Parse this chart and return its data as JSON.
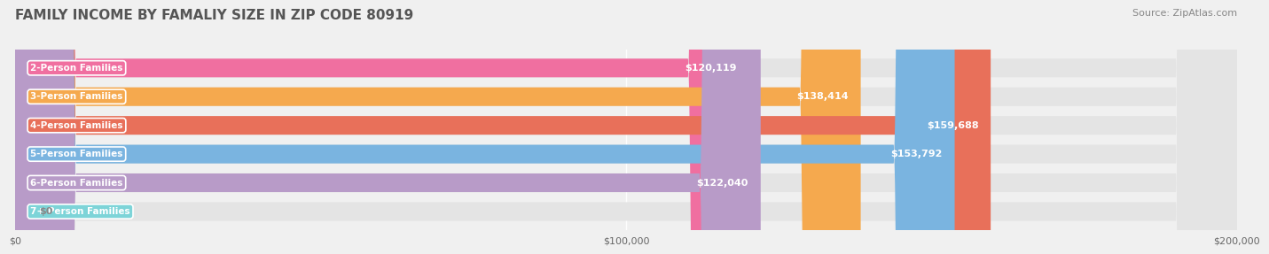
{
  "title": "FAMILY INCOME BY FAMALIY SIZE IN ZIP CODE 80919",
  "source": "Source: ZipAtlas.com",
  "categories": [
    "2-Person Families",
    "3-Person Families",
    "4-Person Families",
    "5-Person Families",
    "6-Person Families",
    "7+ Person Families"
  ],
  "values": [
    120119,
    138414,
    159688,
    153792,
    122040,
    0
  ],
  "bar_colors": [
    "#f06fa0",
    "#f5a94e",
    "#e8705a",
    "#7ab4e0",
    "#b89bc8",
    "#7dd4d8"
  ],
  "label_values": [
    "$120,119",
    "$138,414",
    "$159,688",
    "$153,792",
    "$122,040",
    "$0"
  ],
  "xlim": [
    0,
    200000
  ],
  "xticks": [
    0,
    100000,
    200000
  ],
  "xtick_labels": [
    "$0",
    "$100,000",
    "$200,000"
  ],
  "background_color": "#f0f0f0",
  "bar_background_color": "#e4e4e4",
  "title_fontsize": 11,
  "source_fontsize": 8,
  "bar_height": 0.65,
  "bar_label_fontsize": 8,
  "category_label_fontsize": 7.5
}
